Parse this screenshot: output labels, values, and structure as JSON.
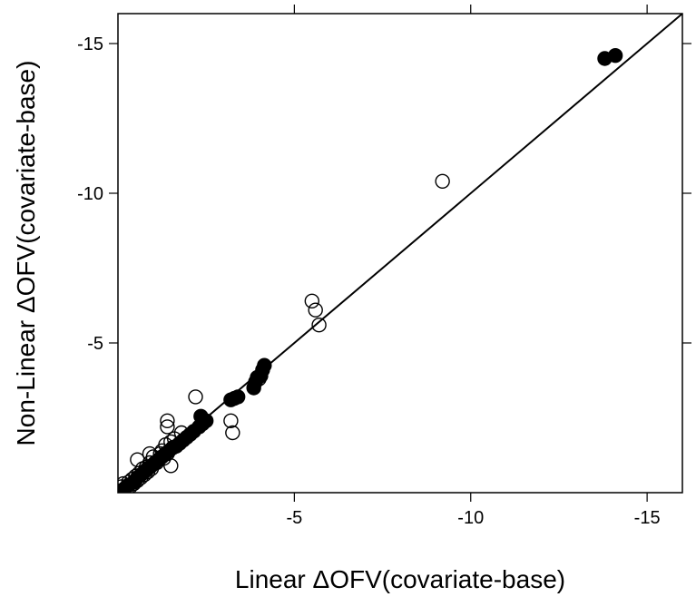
{
  "chart_data": {
    "type": "scatter",
    "title": "",
    "xlabel": "Linear ΔOFV(covariate-base)",
    "ylabel": "Non-Linear ΔOFV(covariate-base)",
    "xlim": [
      0,
      -16
    ],
    "ylim": [
      0,
      -16
    ],
    "x_ticks": [
      -5,
      -10,
      -15
    ],
    "y_ticks": [
      -5,
      -10,
      -15
    ],
    "x_tick_labels": [
      "-5",
      "-10",
      "-15"
    ],
    "y_tick_labels": [
      "-5",
      "-10",
      "-15"
    ],
    "grid": false,
    "reference_line": {
      "type": "identity",
      "from": [
        0,
        0
      ],
      "to": [
        -16,
        -16
      ]
    },
    "series": [
      {
        "marker": "open-circle",
        "color": "#000000",
        "points": [
          [
            -0.05,
            -0.05
          ],
          [
            -0.1,
            -0.2
          ],
          [
            -0.2,
            -0.15
          ],
          [
            -0.15,
            -0.3
          ],
          [
            -0.25,
            -0.1
          ],
          [
            -0.3,
            -0.35
          ],
          [
            -0.35,
            -0.2
          ],
          [
            -0.4,
            -0.45
          ],
          [
            -0.45,
            -0.3
          ],
          [
            -0.5,
            -0.55
          ],
          [
            -0.55,
            -0.4
          ],
          [
            -0.6,
            -0.65
          ],
          [
            -0.65,
            -0.5
          ],
          [
            -0.7,
            -0.8
          ],
          [
            -0.75,
            -0.6
          ],
          [
            -0.8,
            -0.85
          ],
          [
            -0.85,
            -0.7
          ],
          [
            -0.9,
            -1.0
          ],
          [
            -0.95,
            -0.8
          ],
          [
            -1.0,
            -1.2
          ],
          [
            -1.1,
            -1.0
          ],
          [
            -1.2,
            -1.3
          ],
          [
            -1.25,
            -1.4
          ],
          [
            -1.3,
            -1.15
          ],
          [
            -1.35,
            -1.6
          ],
          [
            -1.4,
            -1.3
          ],
          [
            -1.5,
            -1.7
          ],
          [
            -1.55,
            -1.5
          ],
          [
            -1.6,
            -1.8
          ],
          [
            -1.5,
            -0.9
          ],
          [
            -1.8,
            -2.0
          ],
          [
            -1.4,
            -2.2
          ],
          [
            -0.55,
            -1.1
          ],
          [
            -0.9,
            -1.3
          ],
          [
            -2.2,
            -3.2
          ],
          [
            -1.4,
            -2.4
          ],
          [
            -3.2,
            -2.4
          ],
          [
            -3.25,
            -2.0
          ],
          [
            -5.5,
            -6.4
          ],
          [
            -5.6,
            -6.1
          ],
          [
            -5.7,
            -5.6
          ],
          [
            -9.2,
            -10.4
          ],
          [
            -4.0,
            -3.8
          ]
        ]
      },
      {
        "marker": "filled-circle",
        "color": "#000000",
        "points": [
          [
            -0.05,
            -0.05
          ],
          [
            -0.15,
            -0.1
          ],
          [
            -0.3,
            -0.25
          ],
          [
            -0.45,
            -0.35
          ],
          [
            -0.55,
            -0.5
          ],
          [
            -0.65,
            -0.6
          ],
          [
            -0.75,
            -0.7
          ],
          [
            -0.85,
            -0.8
          ],
          [
            -0.95,
            -0.9
          ],
          [
            -1.05,
            -1.0
          ],
          [
            -1.15,
            -1.1
          ],
          [
            -1.25,
            -1.2
          ],
          [
            -1.35,
            -1.3
          ],
          [
            -1.45,
            -1.4
          ],
          [
            -1.55,
            -1.5
          ],
          [
            -1.65,
            -1.55
          ],
          [
            -1.75,
            -1.65
          ],
          [
            -1.85,
            -1.75
          ],
          [
            -1.95,
            -1.85
          ],
          [
            -2.05,
            -1.95
          ],
          [
            -2.15,
            -2.05
          ],
          [
            -2.3,
            -2.2
          ],
          [
            -2.4,
            -2.3
          ],
          [
            -2.5,
            -2.4
          ],
          [
            -2.35,
            -2.55
          ],
          [
            -3.2,
            -3.1
          ],
          [
            -3.3,
            -3.15
          ],
          [
            -3.4,
            -3.2
          ],
          [
            -3.85,
            -3.5
          ],
          [
            -3.9,
            -3.7
          ],
          [
            -3.95,
            -3.85
          ],
          [
            -4.05,
            -3.9
          ],
          [
            -4.1,
            -4.1
          ],
          [
            -4.15,
            -4.25
          ],
          [
            -13.8,
            -14.5
          ],
          [
            -14.1,
            -14.6
          ]
        ]
      }
    ]
  }
}
